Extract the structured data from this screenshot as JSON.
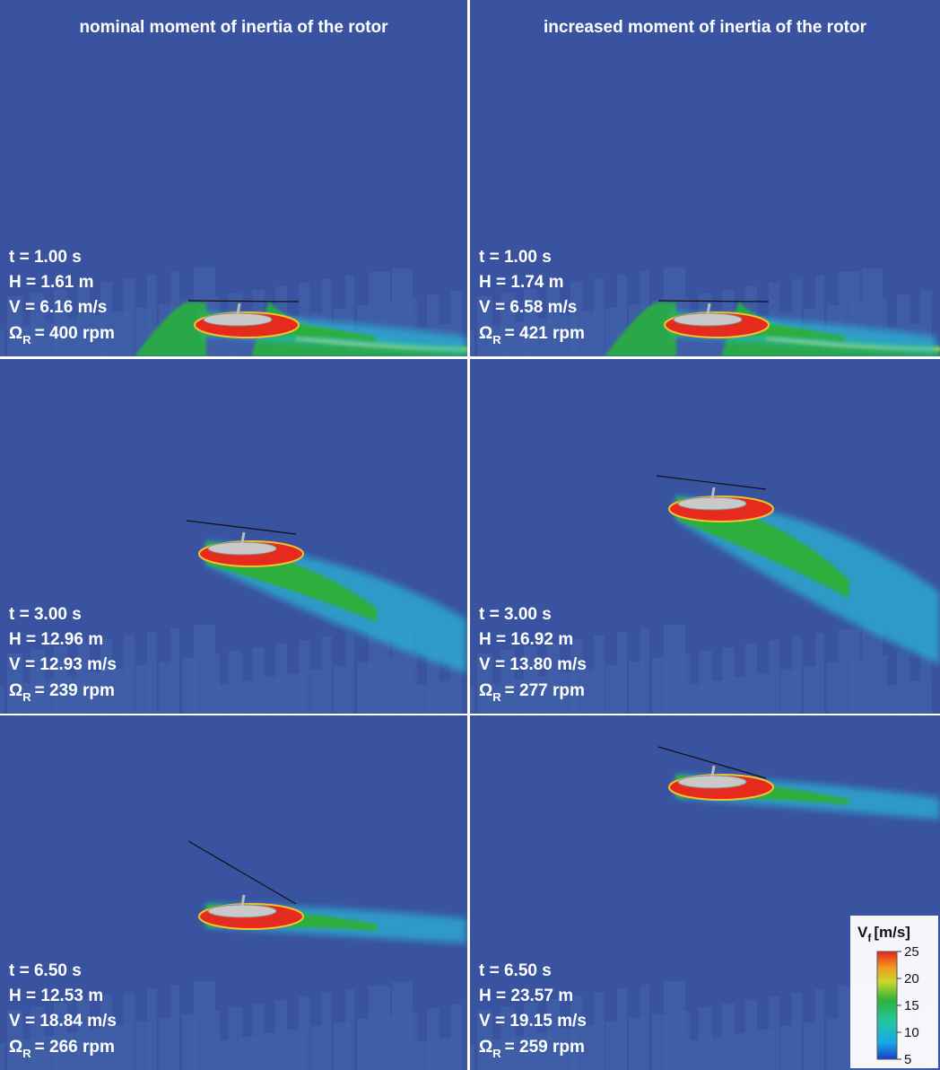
{
  "columns": [
    {
      "title": "nominal moment of inertia of the rotor"
    },
    {
      "title": "increased moment of inertia of the rotor"
    }
  ],
  "panels": [
    {
      "t": "t = 1.00 s",
      "H": "H = 1.61 m",
      "V": "V = 6.16 m/s",
      "omega": {
        "symbol": "Ω",
        "subscript": "R",
        "text": "= 400 rpm"
      }
    },
    {
      "t": "t = 1.00 s",
      "H": "H = 1.74 m",
      "V": "V = 6.58 m/s",
      "omega": {
        "symbol": "Ω",
        "subscript": "R",
        "text": "= 421 rpm"
      }
    },
    {
      "t": "t = 3.00 s",
      "H": "H = 12.96 m",
      "V": "V = 12.93 m/s",
      "omega": {
        "symbol": "Ω",
        "subscript": "R",
        "text": "= 239 rpm"
      }
    },
    {
      "t": "t = 3.00 s",
      "H": "H = 16.92 m",
      "V": "V = 13.80 m/s",
      "omega": {
        "symbol": "Ω",
        "subscript": "R",
        "text": "= 277 rpm"
      }
    },
    {
      "t": "t = 6.50 s",
      "H": "H = 12.53 m",
      "V": "V = 18.84 m/s",
      "omega": {
        "symbol": "Ω",
        "subscript": "R",
        "text": "= 266 rpm"
      }
    },
    {
      "t": "t = 6.50 s",
      "H": "H = 23.57 m",
      "V": "V = 19.15 m/s",
      "omega": {
        "symbol": "Ω",
        "subscript": "R",
        "text": "= 259 rpm"
      }
    }
  ],
  "colorbar": {
    "symbol": "V",
    "subscript": "f",
    "unit": "[m/s]",
    "ticks": [
      25,
      20,
      15,
      10,
      5
    ]
  }
}
